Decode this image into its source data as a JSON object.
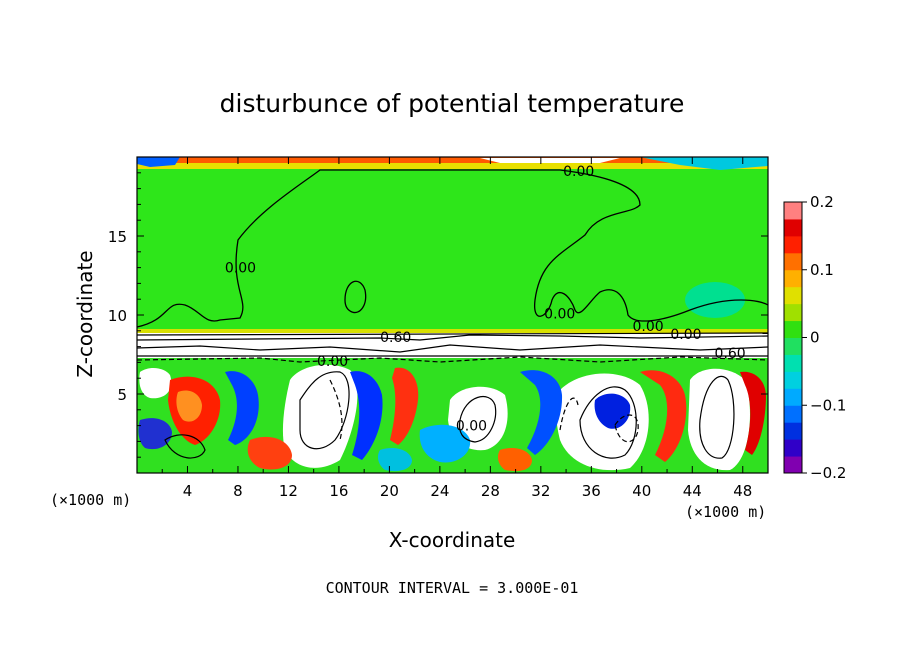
{
  "chart_data": {
    "type": "heatmap",
    "title": "disturbunce of potential temperature",
    "xlabel": "X-coordinate",
    "ylabel": "Z-coordinate",
    "x_unit_label": "(×1000 m)",
    "x_unit_label_right": "(×1000 m)",
    "footer": "CONTOUR INTERVAL = 3.000E-01",
    "xlim": [
      0,
      50
    ],
    "ylim": [
      0,
      20
    ],
    "x_ticks": [
      4,
      8,
      12,
      16,
      20,
      24,
      28,
      32,
      36,
      40,
      44,
      48
    ],
    "x_tick_labels": [
      "4",
      "8",
      "12",
      "16",
      "20",
      "24",
      "28",
      "32",
      "36",
      "40",
      "44",
      "48"
    ],
    "y_ticks": [
      5,
      10,
      15
    ],
    "y_tick_labels": [
      "5",
      "10",
      "15"
    ],
    "colorbar": {
      "range": [
        -0.2,
        0.2
      ],
      "tick_values": [
        0.2,
        0.1,
        0,
        -0.1,
        -0.2
      ],
      "tick_labels": [
        "0.2",
        "0.1",
        "0",
        "−0.1",
        "−0.2"
      ],
      "colors": [
        "#8000b0",
        "#3000c8",
        "#0030e0",
        "#0070ff",
        "#00aaff",
        "#00d0e0",
        "#00e0b0",
        "#20e060",
        "#30e010",
        "#a0e000",
        "#e0e000",
        "#ffb000",
        "#ff7000",
        "#ff2000",
        "#e00000",
        "#ff8080"
      ]
    },
    "contour_labels": [
      {
        "text": "0.00",
        "x": 35.0,
        "z": 19.1
      },
      {
        "text": "0.00",
        "x": 8.2,
        "z": 13.0
      },
      {
        "text": "0.00",
        "x": 33.5,
        "z": 10.1
      },
      {
        "text": "0.00",
        "x": 40.5,
        "z": 9.3
      },
      {
        "text": "0.00",
        "x": 43.5,
        "z": 8.8
      },
      {
        "text": "0.60",
        "x": 20.5,
        "z": 8.6
      },
      {
        "text": "0.00",
        "x": 15.5,
        "z": 7.1
      },
      {
        "text": "0.60",
        "x": 47.0,
        "z": 7.6
      },
      {
        "text": "0.00",
        "x": 26.5,
        "z": 3.0
      }
    ],
    "regions": [
      {
        "description": "upper layer",
        "z_range": [
          9,
          19.5
        ],
        "value": 0.0
      },
      {
        "description": "thin top band",
        "z_range": [
          19.5,
          20
        ],
        "value": 0.15
      },
      {
        "description": "lower turbulent layer",
        "z_range": [
          0,
          7.2
        ],
        "value_range": [
          -0.2,
          0.2
        ]
      }
    ]
  }
}
